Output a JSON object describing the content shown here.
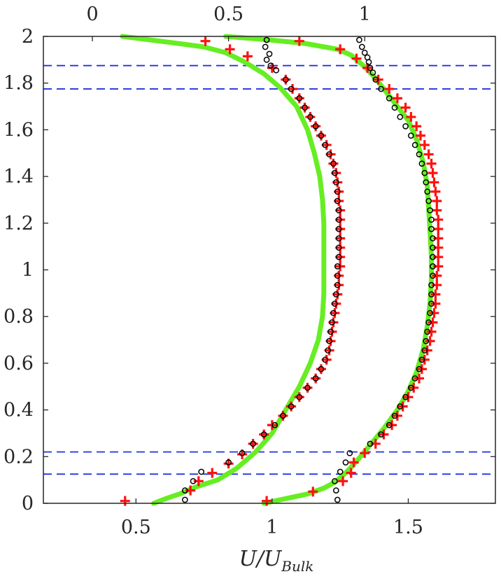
{
  "chart_data": {
    "type": "line",
    "title": "",
    "xlabel": "U/U",
    "xlabel_subscript": "Bulk",
    "ylabel": "",
    "xlim_bottom": [
      0.16,
      1.82
    ],
    "xlim_top": [
      -0.18,
      1.48
    ],
    "ylim": [
      0,
      2
    ],
    "xticks_bottom": [
      0.5,
      1,
      1.5
    ],
    "xtick_labels_bottom": [
      "0.5",
      "1",
      "1.5"
    ],
    "xticks_top": [
      0,
      0.5,
      1
    ],
    "xtick_labels_top": [
      "0",
      "0.5",
      "1"
    ],
    "yticks": [
      0,
      0.2,
      0.4,
      0.6,
      0.8,
      1,
      1.2,
      1.4,
      1.6,
      1.8,
      2
    ],
    "ytick_labels": [
      "0",
      "0.2",
      "0.4",
      "0.6",
      "0.8",
      "1",
      "1.2",
      "1.4",
      "1.6",
      "1.8",
      "2"
    ],
    "grid": false,
    "legend": "none",
    "colors": {
      "line": "#66ee22",
      "plus": "#ff1111",
      "circle": "#000000",
      "hline": "#2233dd",
      "axes": "#262626"
    },
    "hlines": [
      0.125,
      0.22,
      1.775,
      1.875
    ],
    "series": [
      {
        "style": "line",
        "points": [
          [
            0.565,
            0.0
          ],
          [
            0.61,
            0.02
          ],
          [
            0.66,
            0.04
          ],
          [
            0.72,
            0.07
          ],
          [
            0.8,
            0.1
          ],
          [
            0.87,
            0.15
          ],
          [
            0.94,
            0.22
          ],
          [
            1.0,
            0.3
          ],
          [
            1.05,
            0.4
          ],
          [
            1.1,
            0.5
          ],
          [
            1.14,
            0.6
          ],
          [
            1.17,
            0.7
          ],
          [
            1.185,
            0.8
          ],
          [
            1.19,
            0.9
          ],
          [
            1.19,
            1.0
          ],
          [
            1.19,
            1.1
          ],
          [
            1.19,
            1.2
          ],
          [
            1.185,
            1.3
          ],
          [
            1.175,
            1.4
          ],
          [
            1.155,
            1.5
          ],
          [
            1.13,
            1.6
          ],
          [
            1.09,
            1.7
          ],
          [
            1.03,
            1.78
          ],
          [
            0.97,
            1.84
          ],
          [
            0.9,
            1.89
          ],
          [
            0.83,
            1.93
          ],
          [
            0.75,
            1.955
          ],
          [
            0.62,
            1.975
          ],
          [
            0.45,
            2.0
          ]
        ]
      },
      {
        "style": "line",
        "points": [
          [
            0.97,
            0.0
          ],
          [
            1.05,
            0.02
          ],
          [
            1.13,
            0.04
          ],
          [
            1.19,
            0.065
          ],
          [
            1.23,
            0.09
          ],
          [
            1.27,
            0.13
          ],
          [
            1.31,
            0.18
          ],
          [
            1.36,
            0.25
          ],
          [
            1.41,
            0.32
          ],
          [
            1.46,
            0.4
          ],
          [
            1.5,
            0.48
          ],
          [
            1.53,
            0.56
          ],
          [
            1.555,
            0.66
          ],
          [
            1.57,
            0.76
          ],
          [
            1.58,
            0.86
          ],
          [
            1.585,
            0.96
          ],
          [
            1.585,
            1.06
          ],
          [
            1.58,
            1.16
          ],
          [
            1.575,
            1.26
          ],
          [
            1.57,
            1.36
          ],
          [
            1.555,
            1.46
          ],
          [
            1.53,
            1.56
          ],
          [
            1.5,
            1.64
          ],
          [
            1.46,
            1.7
          ],
          [
            1.42,
            1.76
          ],
          [
            1.38,
            1.82
          ],
          [
            1.34,
            1.87
          ],
          [
            1.29,
            1.92
          ],
          [
            1.24,
            1.945
          ],
          [
            1.12,
            1.97
          ],
          [
            0.99,
            1.985
          ],
          [
            0.83,
            2.0
          ]
        ]
      },
      {
        "style": "plus",
        "points": [
          [
            0.46,
            0.01
          ],
          [
            0.7,
            0.055
          ],
          [
            0.73,
            0.095
          ],
          [
            0.78,
            0.13
          ],
          [
            0.84,
            0.17
          ],
          [
            0.89,
            0.21
          ],
          [
            0.93,
            0.255
          ],
          [
            0.97,
            0.295
          ],
          [
            1.0,
            0.335
          ],
          [
            1.04,
            0.375
          ],
          [
            1.07,
            0.415
          ],
          [
            1.1,
            0.455
          ],
          [
            1.13,
            0.495
          ],
          [
            1.16,
            0.535
          ],
          [
            1.18,
            0.575
          ],
          [
            1.2,
            0.615
          ],
          [
            1.21,
            0.655
          ],
          [
            1.215,
            0.695
          ],
          [
            1.22,
            0.735
          ],
          [
            1.225,
            0.775
          ],
          [
            1.23,
            0.815
          ],
          [
            1.235,
            0.855
          ],
          [
            1.24,
            0.895
          ],
          [
            1.245,
            0.935
          ],
          [
            1.245,
            0.975
          ],
          [
            1.25,
            1.015
          ],
          [
            1.25,
            1.055
          ],
          [
            1.25,
            1.095
          ],
          [
            1.25,
            1.135
          ],
          [
            1.25,
            1.175
          ],
          [
            1.25,
            1.215
          ],
          [
            1.25,
            1.255
          ],
          [
            1.245,
            1.295
          ],
          [
            1.245,
            1.335
          ],
          [
            1.24,
            1.375
          ],
          [
            1.235,
            1.415
          ],
          [
            1.225,
            1.455
          ],
          [
            1.215,
            1.495
          ],
          [
            1.2,
            1.535
          ],
          [
            1.18,
            1.575
          ],
          [
            1.16,
            1.615
          ],
          [
            1.14,
            1.655
          ],
          [
            1.12,
            1.695
          ],
          [
            1.1,
            1.735
          ],
          [
            1.075,
            1.775
          ],
          [
            1.05,
            1.815
          ],
          [
            1.0,
            1.865
          ],
          [
            0.91,
            1.915
          ],
          [
            0.845,
            1.945
          ],
          [
            0.755,
            1.98
          ]
        ]
      },
      {
        "style": "circle",
        "points": [
          [
            0.68,
            0.015
          ],
          [
            0.68,
            0.055
          ],
          [
            0.71,
            0.095
          ],
          [
            0.74,
            0.135
          ],
          [
            0.84,
            0.175
          ],
          [
            0.89,
            0.215
          ],
          [
            0.93,
            0.255
          ],
          [
            0.97,
            0.295
          ],
          [
            1.01,
            0.335
          ],
          [
            1.04,
            0.375
          ],
          [
            1.07,
            0.415
          ],
          [
            1.1,
            0.455
          ],
          [
            1.13,
            0.495
          ],
          [
            1.16,
            0.535
          ],
          [
            1.18,
            0.575
          ],
          [
            1.195,
            0.615
          ],
          [
            1.205,
            0.655
          ],
          [
            1.21,
            0.695
          ],
          [
            1.215,
            0.735
          ],
          [
            1.22,
            0.775
          ],
          [
            1.225,
            0.815
          ],
          [
            1.23,
            0.855
          ],
          [
            1.235,
            0.895
          ],
          [
            1.24,
            0.935
          ],
          [
            1.24,
            0.975
          ],
          [
            1.24,
            1.015
          ],
          [
            1.245,
            1.055
          ],
          [
            1.245,
            1.095
          ],
          [
            1.245,
            1.135
          ],
          [
            1.245,
            1.175
          ],
          [
            1.245,
            1.215
          ],
          [
            1.245,
            1.255
          ],
          [
            1.24,
            1.295
          ],
          [
            1.24,
            1.335
          ],
          [
            1.235,
            1.375
          ],
          [
            1.23,
            1.415
          ],
          [
            1.225,
            1.455
          ],
          [
            1.21,
            1.495
          ],
          [
            1.195,
            1.535
          ],
          [
            1.18,
            1.575
          ],
          [
            1.16,
            1.615
          ],
          [
            1.14,
            1.655
          ],
          [
            1.12,
            1.695
          ],
          [
            1.1,
            1.735
          ],
          [
            1.07,
            1.775
          ],
          [
            1.05,
            1.815
          ],
          [
            1.015,
            1.855
          ],
          [
            0.995,
            1.875
          ],
          [
            0.98,
            1.9
          ],
          [
            0.99,
            1.925
          ],
          [
            0.975,
            1.955
          ],
          [
            0.98,
            1.985
          ]
        ]
      },
      {
        "style": "plus",
        "points": [
          [
            0.98,
            0.01
          ],
          [
            1.15,
            0.05
          ],
          [
            1.26,
            0.095
          ],
          [
            1.29,
            0.13
          ],
          [
            1.3,
            0.175
          ],
          [
            1.34,
            0.215
          ],
          [
            1.38,
            0.255
          ],
          [
            1.41,
            0.295
          ],
          [
            1.44,
            0.335
          ],
          [
            1.46,
            0.375
          ],
          [
            1.48,
            0.415
          ],
          [
            1.5,
            0.455
          ],
          [
            1.52,
            0.495
          ],
          [
            1.54,
            0.535
          ],
          [
            1.55,
            0.575
          ],
          [
            1.56,
            0.615
          ],
          [
            1.57,
            0.655
          ],
          [
            1.58,
            0.695
          ],
          [
            1.585,
            0.735
          ],
          [
            1.59,
            0.775
          ],
          [
            1.595,
            0.815
          ],
          [
            1.6,
            0.855
          ],
          [
            1.6,
            0.895
          ],
          [
            1.605,
            0.935
          ],
          [
            1.605,
            0.975
          ],
          [
            1.61,
            1.015
          ],
          [
            1.61,
            1.055
          ],
          [
            1.61,
            1.095
          ],
          [
            1.61,
            1.135
          ],
          [
            1.61,
            1.175
          ],
          [
            1.61,
            1.215
          ],
          [
            1.605,
            1.255
          ],
          [
            1.605,
            1.295
          ],
          [
            1.6,
            1.335
          ],
          [
            1.595,
            1.375
          ],
          [
            1.59,
            1.415
          ],
          [
            1.585,
            1.455
          ],
          [
            1.575,
            1.495
          ],
          [
            1.56,
            1.535
          ],
          [
            1.545,
            1.575
          ],
          [
            1.53,
            1.615
          ],
          [
            1.51,
            1.655
          ],
          [
            1.49,
            1.695
          ],
          [
            1.46,
            1.735
          ],
          [
            1.43,
            1.775
          ],
          [
            1.39,
            1.815
          ],
          [
            1.35,
            1.865
          ],
          [
            1.31,
            1.905
          ],
          [
            1.25,
            1.945
          ],
          [
            1.1,
            1.98
          ]
        ]
      },
      {
        "style": "circle",
        "points": [
          [
            1.24,
            0.015
          ],
          [
            1.235,
            0.055
          ],
          [
            1.23,
            0.095
          ],
          [
            1.25,
            0.135
          ],
          [
            1.27,
            0.175
          ],
          [
            1.285,
            0.215
          ],
          [
            1.36,
            0.255
          ],
          [
            1.4,
            0.295
          ],
          [
            1.43,
            0.335
          ],
          [
            1.45,
            0.375
          ],
          [
            1.47,
            0.415
          ],
          [
            1.49,
            0.455
          ],
          [
            1.51,
            0.495
          ],
          [
            1.525,
            0.535
          ],
          [
            1.54,
            0.575
          ],
          [
            1.55,
            0.615
          ],
          [
            1.56,
            0.655
          ],
          [
            1.565,
            0.695
          ],
          [
            1.57,
            0.735
          ],
          [
            1.575,
            0.775
          ],
          [
            1.58,
            0.815
          ],
          [
            1.585,
            0.855
          ],
          [
            1.585,
            0.895
          ],
          [
            1.585,
            0.935
          ],
          [
            1.59,
            0.975
          ],
          [
            1.59,
            1.015
          ],
          [
            1.59,
            1.055
          ],
          [
            1.59,
            1.095
          ],
          [
            1.59,
            1.135
          ],
          [
            1.585,
            1.175
          ],
          [
            1.585,
            1.215
          ],
          [
            1.58,
            1.255
          ],
          [
            1.575,
            1.295
          ],
          [
            1.57,
            1.335
          ],
          [
            1.565,
            1.375
          ],
          [
            1.56,
            1.415
          ],
          [
            1.55,
            1.455
          ],
          [
            1.54,
            1.495
          ],
          [
            1.525,
            1.535
          ],
          [
            1.51,
            1.575
          ],
          [
            1.49,
            1.615
          ],
          [
            1.47,
            1.655
          ],
          [
            1.45,
            1.695
          ],
          [
            1.43,
            1.735
          ],
          [
            1.4,
            1.775
          ],
          [
            1.38,
            1.815
          ],
          [
            1.37,
            1.845
          ],
          [
            1.36,
            1.865
          ],
          [
            1.355,
            1.89
          ],
          [
            1.35,
            1.91
          ],
          [
            1.34,
            1.93
          ],
          [
            1.33,
            1.955
          ],
          [
            1.32,
            1.985
          ]
        ]
      }
    ]
  }
}
